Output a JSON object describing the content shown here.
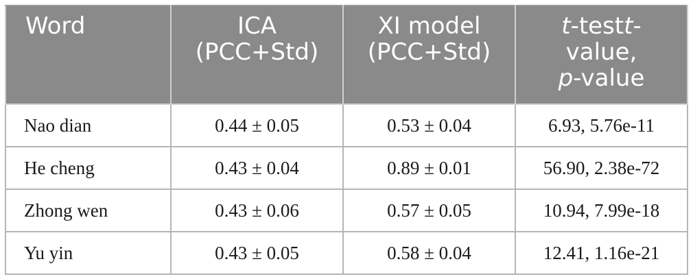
{
  "table": {
    "headers": {
      "word": "Word",
      "ica_line1": "ICA",
      "ica_line2": "(PCC+Std)",
      "xi_line1": "XI model",
      "xi_line2": "(PCC+Std)",
      "ttest_t1": "t",
      "ttest_mid": "-test",
      "ttest_t2": "t",
      "ttest_dash": "-",
      "ttest_value": "value,",
      "ttest_p": "p",
      "ttest_pvalue": "-value"
    },
    "rows": [
      {
        "word": "Nao dian",
        "ica": "0.44 ± 0.05",
        "xi": "0.53 ± 0.04",
        "ttest": "6.93, 5.76e-11"
      },
      {
        "word": "He cheng",
        "ica": "0.43 ± 0.04",
        "xi": "0.89 ± 0.01",
        "ttest": "56.90, 2.38e-72"
      },
      {
        "word": "Zhong wen",
        "ica": "0.43 ± 0.06",
        "xi": "0.57 ± 0.05",
        "ttest": "10.94, 7.99e-18"
      },
      {
        "word": "Yu yin",
        "ica": "0.43 ± 0.05",
        "xi": "0.58 ± 0.04",
        "ttest": "12.41, 1.16e-21"
      }
    ]
  },
  "colors": {
    "header_background": "#8a8a8a",
    "header_text": "#ffffff",
    "body_text": "#1a1a1a",
    "border": "#b5b5b5"
  }
}
